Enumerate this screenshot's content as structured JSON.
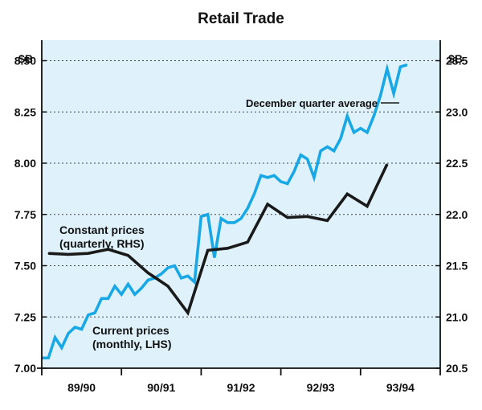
{
  "colors": {
    "plot_background": "#dff2fb",
    "current_series": "#19a8e6",
    "constant_series": "#1a1a1a",
    "grid": "#444444"
  },
  "chart_data": {
    "type": "line",
    "title": "Retail Trade",
    "grid": "horizontal dotted",
    "left_axis": {
      "unit": "$B",
      "ylim": [
        7.0,
        8.6
      ],
      "ticks": [
        7.0,
        7.25,
        7.5,
        7.75,
        8.0,
        8.25,
        8.5
      ],
      "tick_labels": [
        "7.00",
        "7.25",
        "7.50",
        "7.75",
        "8.00",
        "8.25",
        "8.50"
      ]
    },
    "right_axis": {
      "unit": "$B",
      "ylim": [
        20.5,
        23.7
      ],
      "ticks": [
        20.5,
        21.0,
        21.5,
        22.0,
        22.5,
        23.0,
        23.5
      ],
      "tick_labels": [
        "20.5",
        "21.0",
        "21.5",
        "22.0",
        "22.5",
        "23.0",
        "23.5"
      ]
    },
    "x_axis": {
      "range": [
        0,
        60
      ],
      "category_labels": [
        "89/90",
        "90/91",
        "91/92",
        "92/93",
        "93/94"
      ]
    },
    "series": [
      {
        "name": "Current prices (monthly, LHS)",
        "axis": "left",
        "values": [
          7.05,
          7.05,
          7.15,
          7.1,
          7.17,
          7.2,
          7.19,
          7.26,
          7.27,
          7.34,
          7.34,
          7.4,
          7.36,
          7.41,
          7.36,
          7.39,
          7.43,
          7.44,
          7.46,
          7.49,
          7.5,
          7.44,
          7.45,
          7.42,
          7.74,
          7.75,
          7.54,
          7.73,
          7.71,
          7.71,
          7.73,
          7.78,
          7.85,
          7.94,
          7.93,
          7.94,
          7.91,
          7.9,
          7.96,
          8.04,
          8.02,
          7.93,
          8.06,
          8.08,
          8.06,
          8.12,
          8.23,
          8.15,
          8.17,
          8.15,
          8.23,
          8.33,
          8.46,
          8.34,
          8.47,
          8.48
        ]
      },
      {
        "name": "Constant prices (quarterly, RHS)",
        "axis": "right",
        "values": [
          21.62,
          21.61,
          21.62,
          21.66,
          21.6,
          21.43,
          21.3,
          21.04,
          21.65,
          21.67,
          21.73,
          22.1,
          21.97,
          21.98,
          21.94,
          22.2,
          22.08,
          22.49
        ]
      }
    ],
    "annotations": {
      "average_label": "December quarter average",
      "current_label_line1": "Current prices",
      "current_label_line2": "(monthly, LHS)",
      "constant_label_line1": "Constant prices",
      "constant_label_line2": "(quarterly, RHS)"
    }
  }
}
